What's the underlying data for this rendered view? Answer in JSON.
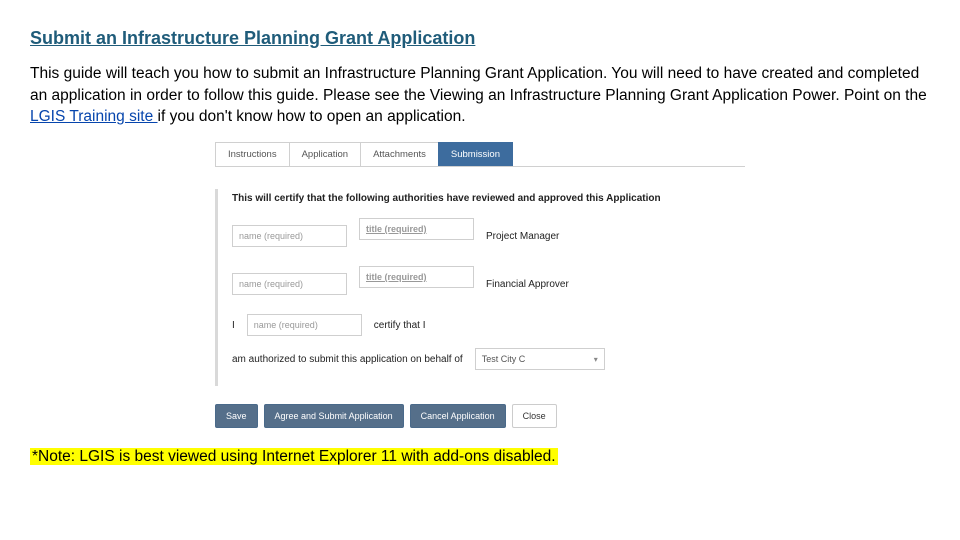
{
  "title": "Submit an Infrastructure Planning Grant Application",
  "intro": {
    "part1": "This guide will teach you how to submit an Infrastructure Planning Grant Application. You will need to have created and completed an application in order to follow this guide. Please see the Viewing an Infrastructure Planning Grant Application Power. Point on the ",
    "link": "LGIS Training site ",
    "part2": "if you don't know how to open an application."
  },
  "screenshot": {
    "tabs": [
      "Instructions",
      "Application",
      "Attachments",
      "Submission"
    ],
    "activeTab": "Submission",
    "certHeading": "This will certify that the following authorities have reviewed and approved this Application",
    "placeholders": {
      "name": "name (required)",
      "title": "title (required)"
    },
    "roles": {
      "pm": "Project Manager",
      "fa": "Financial Approver"
    },
    "line3": {
      "pre": "I",
      "post": "certify that I"
    },
    "line4": {
      "text": "am authorized to submit this application on behalf of",
      "selectValue": "Test City C"
    },
    "buttons": {
      "save": "Save",
      "submit": "Agree and Submit Application",
      "cancel": "Cancel Application",
      "close": "Close"
    }
  },
  "note": "*Note: LGIS is best viewed using Internet Explorer 11 with add-ons disabled.  "
}
